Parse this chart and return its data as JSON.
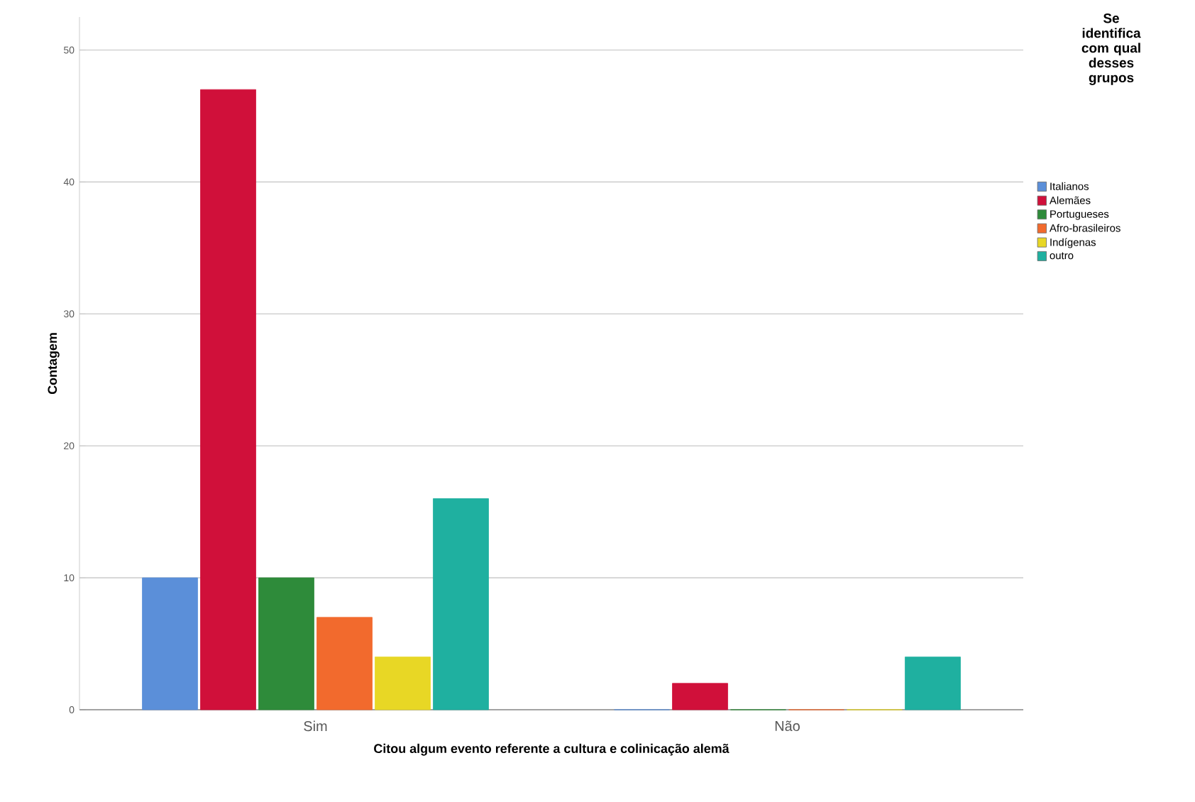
{
  "chart_data": {
    "type": "bar",
    "xlabel": "Citou algum evento referente a cultura e colinicação alemã",
    "ylabel": "Contagem",
    "legend_title": "Se identifica com qual desses grupos",
    "categories": [
      "Sim",
      "Não"
    ],
    "series": [
      {
        "name": "Italianos",
        "color": "#5b8fd9",
        "values": [
          10,
          0
        ]
      },
      {
        "name": "Alemães",
        "color": "#d0103a",
        "values": [
          47,
          2
        ]
      },
      {
        "name": "Portugueses",
        "color": "#2e8b3a",
        "values": [
          10,
          0
        ]
      },
      {
        "name": "Afro-brasileiros",
        "color": "#f26a2d",
        "values": [
          7,
          0
        ]
      },
      {
        "name": "Indígenas",
        "color": "#e8d725",
        "values": [
          4,
          0
        ]
      },
      {
        "name": "outro",
        "color": "#1fb0a0",
        "values": [
          16,
          4
        ]
      }
    ],
    "ylim": [
      0,
      52.5
    ],
    "yticks": [
      0,
      10,
      20,
      30,
      40,
      50
    ],
    "grid": "y",
    "legend": "right"
  }
}
